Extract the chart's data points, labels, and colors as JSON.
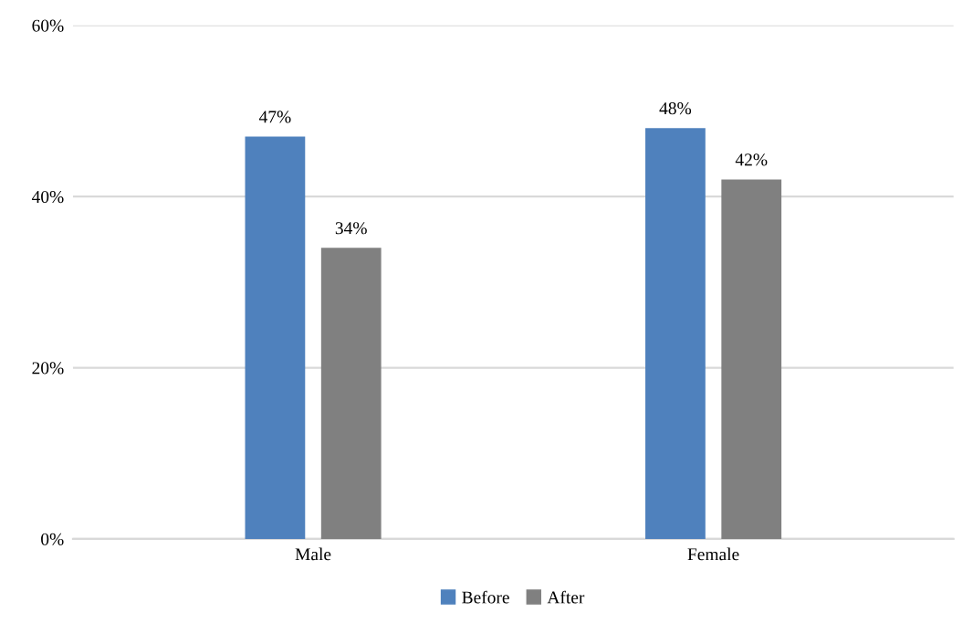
{
  "chart_data": {
    "type": "bar",
    "categories": [
      "Male",
      "Female"
    ],
    "series": [
      {
        "name": "Before",
        "color": "#4f81bd",
        "values": [
          47,
          48
        ],
        "value_labels": [
          "47%",
          "48%"
        ]
      },
      {
        "name": "After",
        "color": "#808080",
        "values": [
          34,
          42
        ],
        "value_labels": [
          "34%",
          "42%"
        ]
      }
    ],
    "ylim": [
      0,
      60
    ],
    "yticks": [
      {
        "value": 0,
        "label": "0%"
      },
      {
        "value": 20,
        "label": "20%"
      },
      {
        "value": 40,
        "label": "40%"
      },
      {
        "value": 60,
        "label": "60%"
      }
    ],
    "grid": "y",
    "legend": "bottom"
  }
}
